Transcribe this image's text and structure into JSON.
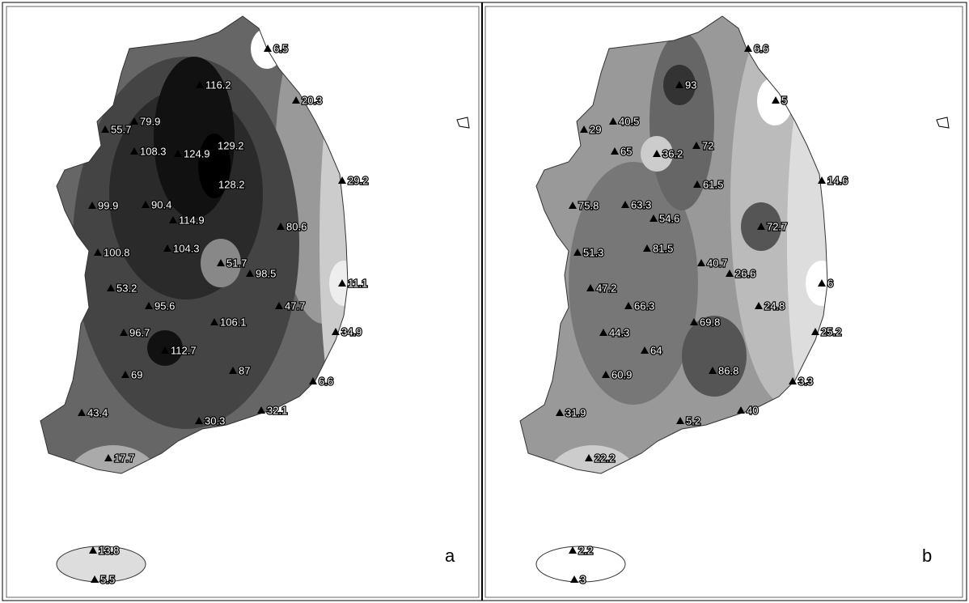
{
  "panels": [
    {
      "label": "a",
      "stations": [
        6.5,
        20.3,
        116.2,
        79.9,
        55.7,
        108.3,
        124.9,
        129.2,
        128.2,
        29.2,
        99.9,
        90.4,
        114.9,
        80.6,
        104.3,
        100.8,
        51.7,
        98.5,
        11.1,
        53.2,
        95.6,
        47.7,
        106.1,
        34.9,
        96.7,
        112.7,
        87,
        69,
        6.6,
        43.4,
        30.3,
        32.1,
        17.7,
        13.8,
        5.5
      ]
    },
    {
      "label": "b",
      "stations": [
        6.6,
        93,
        5,
        40.5,
        29,
        65,
        36.2,
        72,
        61.5,
        14.6,
        75.8,
        63.3,
        54.6,
        72.7,
        81.5,
        51.3,
        40.7,
        26.6,
        6,
        47.2,
        66.3,
        24.8,
        69.8,
        25.2,
        44.3,
        64,
        86.8,
        60.9,
        3.3,
        31.9,
        5.2,
        40,
        22.2,
        2.2,
        3
      ]
    }
  ]
}
